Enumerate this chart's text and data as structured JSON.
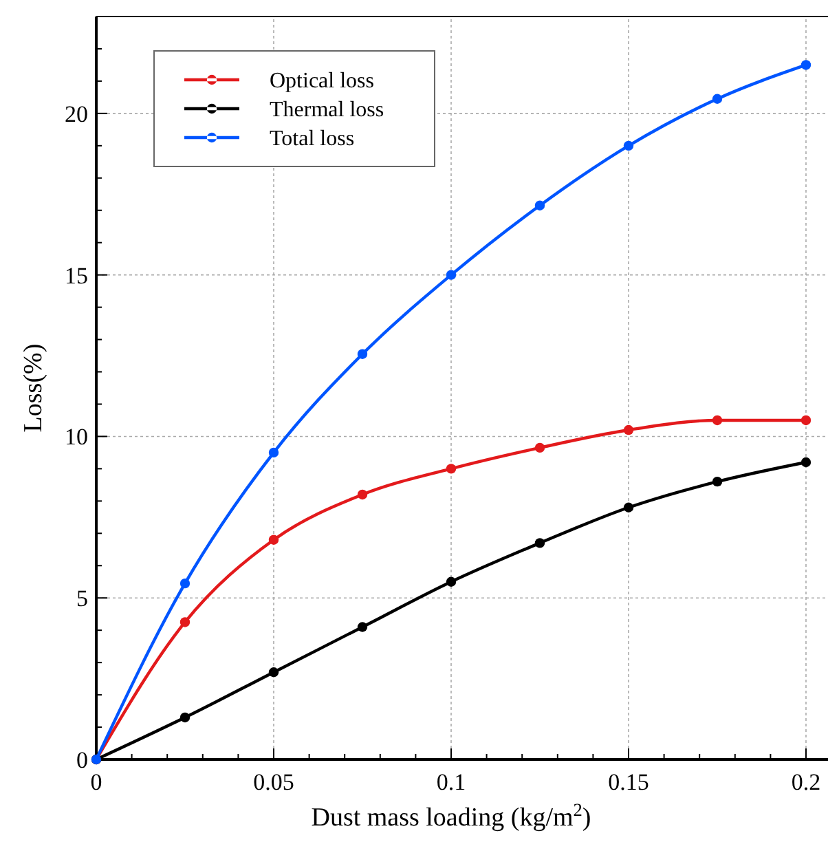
{
  "chart_data": {
    "type": "line",
    "xlabel": "Dust mass loading (kg/m$^{2}$)",
    "ylabel": "Loss(%)",
    "x": [
      0,
      0.025,
      0.05,
      0.075,
      0.1,
      0.125,
      0.15,
      0.175,
      0.2
    ],
    "series": [
      {
        "name": "Optical loss",
        "color": "#e31a1c",
        "values": [
          0,
          4.25,
          6.8,
          8.2,
          9.0,
          9.65,
          10.2,
          10.5,
          10.5
        ]
      },
      {
        "name": "Thermal loss",
        "color": "#000000",
        "values": [
          0,
          1.3,
          2.7,
          4.1,
          5.5,
          6.7,
          7.8,
          8.6,
          9.2
        ]
      },
      {
        "name": "Total loss",
        "color": "#0055ff",
        "values": [
          0,
          5.45,
          9.5,
          12.55,
          15.0,
          17.15,
          19.0,
          20.45,
          21.5
        ]
      }
    ],
    "xlim": [
      0,
      0.2
    ],
    "ylim": [
      0,
      23
    ],
    "xticks": [
      0,
      {
        "value": 0.01,
        "label": null
      },
      {
        "value": 0.02,
        "label": null
      },
      {
        "value": 0.03,
        "label": null
      },
      {
        "value": 0.04,
        "label": null
      },
      0.05,
      {
        "value": 0.06,
        "label": null
      },
      {
        "value": 0.07,
        "label": null
      },
      {
        "value": 0.08,
        "label": null
      },
      {
        "value": 0.09,
        "label": null
      },
      0.1,
      {
        "value": 0.11,
        "label": null
      },
      {
        "value": 0.12,
        "label": null
      },
      {
        "value": 0.13,
        "label": null
      },
      {
        "value": 0.14,
        "label": null
      },
      0.15,
      {
        "value": 0.16,
        "label": null
      },
      {
        "value": 0.17,
        "label": null
      },
      {
        "value": 0.18,
        "label": null
      },
      {
        "value": 0.19,
        "label": null
      },
      0.2
    ],
    "yticks": [
      0,
      {
        "value": 1,
        "label": null
      },
      {
        "value": 2,
        "label": null
      },
      {
        "value": 3,
        "label": null
      },
      {
        "value": 4,
        "label": null
      },
      5,
      {
        "value": 6,
        "label": null
      },
      {
        "value": 7,
        "label": null
      },
      {
        "value": 8,
        "label": null
      },
      {
        "value": 9,
        "label": null
      },
      10,
      {
        "value": 11,
        "label": null
      },
      {
        "value": 12,
        "label": null
      },
      {
        "value": 13,
        "label": null
      },
      {
        "value": 14,
        "label": null
      },
      15,
      {
        "value": 16,
        "label": null
      },
      {
        "value": 17,
        "label": null
      },
      {
        "value": 18,
        "label": null
      },
      {
        "value": 19,
        "label": null
      },
      20,
      {
        "value": 21,
        "label": null
      },
      {
        "value": 22,
        "label": null
      }
    ],
    "grid": true,
    "legend": "top left",
    "marker": "circle",
    "line_style": "solid"
  }
}
